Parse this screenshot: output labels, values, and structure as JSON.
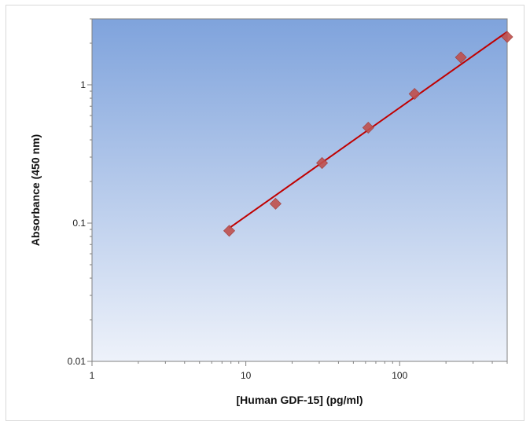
{
  "chart_data": {
    "type": "scatter",
    "title": "",
    "xlabel": "[Human GDF-15]  (pg/ml)",
    "ylabel": "Absorbance (450 nm)",
    "xscale": "log",
    "yscale": "log",
    "xlim": [
      1,
      500
    ],
    "ylim": [
      0.01,
      3
    ],
    "x_ticks": [
      1,
      10,
      100
    ],
    "x_tick_labels": [
      "1",
      "10",
      "100"
    ],
    "y_ticks": [
      0.01,
      0.1,
      1
    ],
    "y_tick_labels": [
      "0.01",
      "0.1",
      "1"
    ],
    "grid": false,
    "legend": "none",
    "series": [
      {
        "points": [
          {
            "x": 7.8,
            "y": 0.088
          },
          {
            "x": 15.6,
            "y": 0.138
          },
          {
            "x": 31.3,
            "y": 0.272
          },
          {
            "x": 62.5,
            "y": 0.49
          },
          {
            "x": 125,
            "y": 0.86
          },
          {
            "x": 250,
            "y": 1.58
          },
          {
            "x": 500,
            "y": 2.22
          }
        ]
      }
    ],
    "fit_line": {
      "x_start": 7.8,
      "y_start": 0.092,
      "x_end": 500,
      "y_end": 2.42
    },
    "colors": {
      "plot_bg_top": "#7fa3dc",
      "plot_bg_bottom": "#eef2fa",
      "marker": "#c0504d",
      "line": "#c00000"
    }
  }
}
